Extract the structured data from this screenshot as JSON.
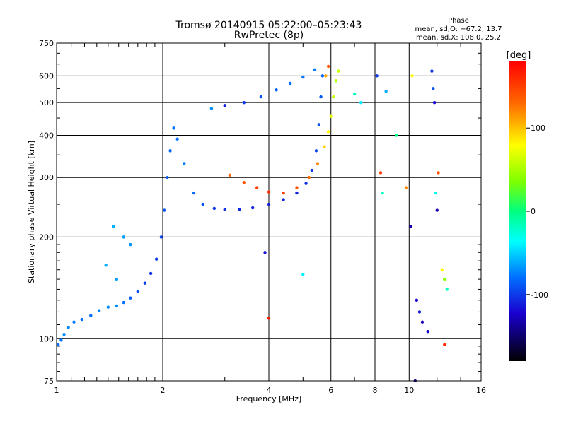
{
  "chart_data": {
    "type": "scatter",
    "title": "Tromsø 20140915 05:22:00–05:23:43",
    "subtitle": "RwPretec (8p)",
    "xlabel": "Frequency [MHz]",
    "ylabel": "Stationary phase Virtual Height [km]",
    "x_scale": "log",
    "y_scale": "log",
    "xlim": [
      1,
      16
    ],
    "ylim": [
      75,
      750
    ],
    "x_ticks": [
      1,
      2,
      4,
      6,
      8,
      10,
      16
    ],
    "y_ticks": [
      75,
      100,
      200,
      300,
      400,
      500,
      600,
      750
    ],
    "grid": true,
    "stats": {
      "title": "Phase",
      "line_o": "mean, sd,O: −67.2, 13.7",
      "line_x": "mean, sd,X: 106.0, 25.2"
    },
    "colorbar": {
      "label": "[deg]",
      "ticks": [
        100,
        0,
        -100
      ],
      "range": [
        -180,
        180
      ]
    },
    "series": [
      {
        "points": [
          [
            1.01,
            96,
            -80
          ],
          [
            1.03,
            99,
            -75
          ],
          [
            1.05,
            103,
            -70
          ],
          [
            1.08,
            108,
            -72
          ],
          [
            1.12,
            112,
            -76
          ],
          [
            1.18,
            114,
            -78
          ],
          [
            1.25,
            117,
            -80
          ],
          [
            1.32,
            121,
            -74
          ],
          [
            1.4,
            124,
            -72
          ],
          [
            1.48,
            125,
            -70
          ],
          [
            1.55,
            128,
            -78
          ],
          [
            1.62,
            132,
            -85
          ],
          [
            1.7,
            138,
            -92
          ],
          [
            1.78,
            146,
            -98
          ],
          [
            1.85,
            156,
            -102
          ],
          [
            1.92,
            172,
            -100
          ],
          [
            1.98,
            200,
            -95
          ],
          [
            2.02,
            240,
            -90
          ],
          [
            2.06,
            300,
            -85
          ],
          [
            2.1,
            360,
            -82
          ],
          [
            2.15,
            420,
            -80
          ],
          [
            2.2,
            390,
            -78
          ],
          [
            2.3,
            330,
            -75
          ],
          [
            2.45,
            270,
            -80
          ],
          [
            2.6,
            250,
            -90
          ],
          [
            2.8,
            243,
            -100
          ],
          [
            3.0,
            241,
            -104
          ],
          [
            3.3,
            241,
            -106
          ],
          [
            3.6,
            244,
            -108
          ],
          [
            4.0,
            250,
            -110
          ],
          [
            4.4,
            258,
            -110
          ],
          [
            4.8,
            270,
            -108
          ],
          [
            5.1,
            288,
            -104
          ],
          [
            5.3,
            315,
            -100
          ],
          [
            5.45,
            360,
            -96
          ],
          [
            5.55,
            430,
            -92
          ],
          [
            5.62,
            520,
            -88
          ],
          [
            5.68,
            600,
            -85
          ],
          [
            2.75,
            480,
            -70
          ],
          [
            3.0,
            490,
            -110
          ],
          [
            3.4,
            500,
            -100
          ],
          [
            3.8,
            520,
            -90
          ],
          [
            4.2,
            545,
            -85
          ],
          [
            4.6,
            570,
            -80
          ],
          [
            5.0,
            595,
            -78
          ],
          [
            5.4,
            625,
            -75
          ],
          [
            1.45,
            215,
            -60
          ],
          [
            1.55,
            200,
            -65
          ],
          [
            1.62,
            190,
            -68
          ],
          [
            1.38,
            165,
            -60
          ],
          [
            1.48,
            150,
            -65
          ]
        ]
      },
      {
        "points": [
          [
            3.1,
            305,
            130
          ],
          [
            3.4,
            290,
            140
          ],
          [
            3.7,
            280,
            150
          ],
          [
            4.0,
            272,
            160
          ],
          [
            4.4,
            270,
            150
          ],
          [
            4.8,
            280,
            140
          ],
          [
            5.2,
            300,
            130
          ],
          [
            5.5,
            330,
            120
          ],
          [
            5.75,
            370,
            95
          ],
          [
            5.9,
            410,
            80
          ],
          [
            6.0,
            455,
            70
          ],
          [
            6.1,
            520,
            60
          ],
          [
            6.2,
            580,
            55
          ],
          [
            6.3,
            620,
            60
          ],
          [
            5.8,
            600,
            110
          ],
          [
            5.9,
            640,
            140
          ]
        ]
      },
      {
        "points": [
          [
            7.0,
            530,
            -20
          ],
          [
            7.3,
            500,
            -40
          ],
          [
            8.1,
            600,
            -100
          ],
          [
            8.3,
            310,
            150
          ],
          [
            8.4,
            270,
            -20
          ],
          [
            8.6,
            540,
            -60
          ],
          [
            9.2,
            400,
            0
          ],
          [
            9.8,
            280,
            120
          ],
          [
            10.1,
            215,
            -130
          ],
          [
            10.2,
            600,
            80
          ],
          [
            11.6,
            620,
            -100
          ],
          [
            11.7,
            550,
            -90
          ],
          [
            11.8,
            500,
            -120
          ],
          [
            11.9,
            270,
            -30
          ],
          [
            12.0,
            240,
            -130
          ],
          [
            12.1,
            310,
            140
          ],
          [
            10.5,
            130,
            -120
          ],
          [
            10.7,
            120,
            -110
          ],
          [
            10.9,
            112,
            -130
          ],
          [
            11.3,
            105,
            -120
          ],
          [
            12.4,
            160,
            80
          ],
          [
            12.6,
            150,
            40
          ],
          [
            12.8,
            140,
            -20
          ],
          [
            12.6,
            96,
            160
          ],
          [
            10.4,
            75,
            -140
          ],
          [
            4.0,
            115,
            170
          ],
          [
            3.9,
            180,
            -115
          ],
          [
            5.0,
            155,
            -40
          ]
        ]
      }
    ]
  }
}
